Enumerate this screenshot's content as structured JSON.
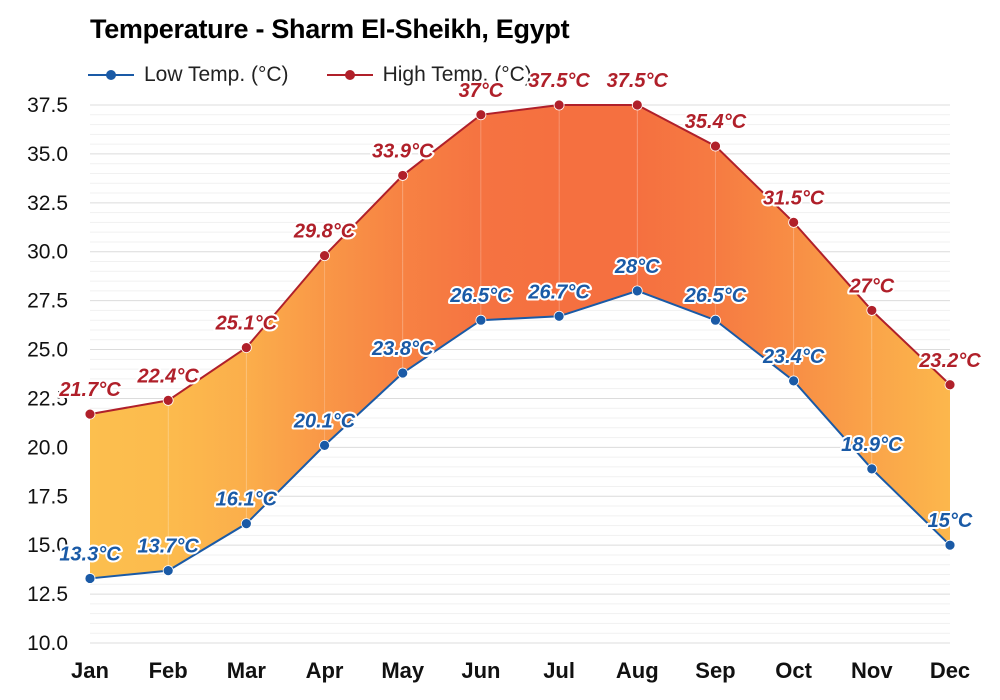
{
  "chart_data": {
    "type": "line",
    "title": "Temperature - Sharm El-Sheikh, Egypt",
    "categories": [
      "Jan",
      "Feb",
      "Mar",
      "Apr",
      "May",
      "Jun",
      "Jul",
      "Aug",
      "Sep",
      "Oct",
      "Nov",
      "Dec"
    ],
    "series": [
      {
        "name": "Low Temp. (°C)",
        "color": "#1a5aa6",
        "values": [
          13.3,
          13.7,
          16.1,
          20.1,
          23.8,
          26.5,
          26.7,
          28,
          26.5,
          23.4,
          18.9,
          15
        ],
        "labels": [
          "13.3°C",
          "13.7°C",
          "16.1°C",
          "20.1°C",
          "23.8°C",
          "26.5°C",
          "26.7°C",
          "28°C",
          "26.5°C",
          "23.4°C",
          "18.9°C",
          "15°C"
        ]
      },
      {
        "name": "High Temp. (°C)",
        "color": "#b0202a",
        "values": [
          21.7,
          22.4,
          25.1,
          29.8,
          33.9,
          37,
          37.5,
          37.5,
          35.4,
          31.5,
          27,
          23.2
        ],
        "labels": [
          "21.7°C",
          "22.4°C",
          "25.1°C",
          "29.8°C",
          "33.9°C",
          "37°C",
          "37.5°C",
          "37.5°C",
          "35.4°C",
          "31.5°C",
          "27°C",
          "23.2°C"
        ]
      }
    ],
    "ylim": [
      10,
      37.5
    ],
    "yticks": [
      "10.0",
      "12.5",
      "15.0",
      "17.5",
      "20.0",
      "22.5",
      "25.0",
      "27.5",
      "30.0",
      "32.5",
      "35.0",
      "37.5"
    ],
    "grid": true,
    "legend_position": "top-left"
  }
}
